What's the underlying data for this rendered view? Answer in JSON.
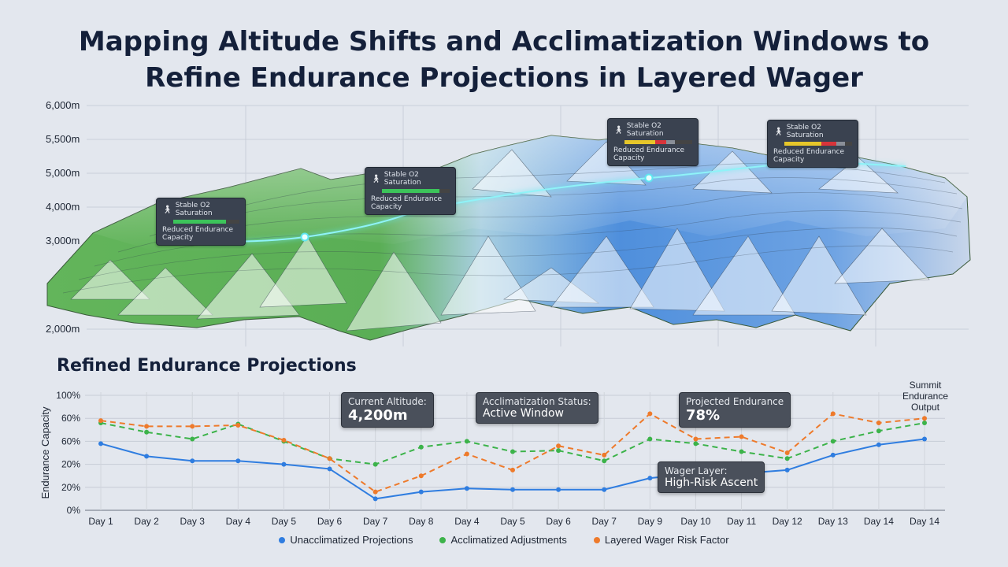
{
  "title": {
    "line1": "Mapping Altitude Shifts and Acclimatization Windows to",
    "line2": "Refine Endurance Projections in Layered Wager"
  },
  "altitude_axis": {
    "labels": [
      "6,000m",
      "5,500m",
      "5,000m",
      "4,000m",
      "3,000m",
      "2,000m"
    ]
  },
  "terrain_callouts": [
    {
      "line1": "Stable O2 Saturation",
      "line2": "Reduced Endurance Capacity",
      "bar": [
        0.8,
        0,
        0
      ]
    },
    {
      "line1": "Stable O2 Saturation",
      "line2": "Reduced Endurance Capacity",
      "bar": [
        0.85,
        0,
        0
      ]
    },
    {
      "line1": "Stable O2 Saturation",
      "line2": "Reduced Endurance Capacity",
      "bar": [
        0.45,
        0.17,
        0.12
      ]
    },
    {
      "line1": "Stable O2 Saturation",
      "line2": "Reduced Endurance Capacity",
      "bar": [
        0.55,
        0.22,
        0.13
      ]
    }
  ],
  "section_title": "Refined Endurance Projections",
  "info_boxes": {
    "current_altitude": {
      "label": "Current Altitude:",
      "value": "4,200m"
    },
    "acclimatization": {
      "label": "Acclimatization Status:",
      "value": "Active Window"
    },
    "projected": {
      "label": "Projected Endurance",
      "value": "78%"
    },
    "wager": {
      "label": "Wager Layer:",
      "value": "High-Risk Ascent"
    }
  },
  "summit_label": "Summit Endurance Output",
  "colors": {
    "unacclimatized": "#2f7de0",
    "acclimatized": "#3cb34a",
    "wager": "#ee7a2b",
    "terrain_green": "#5aae55",
    "terrain_blue": "#4f8fdc",
    "route": "#5fe6ef"
  },
  "chart_data": {
    "type": "line",
    "ylabel": "Endurance Capacity",
    "y_tick_labels": [
      "100%",
      "60%",
      "60%",
      "20%",
      "20%",
      "0%"
    ],
    "categories": [
      "Day 1",
      "Day 2",
      "Day 3",
      "Day 4",
      "Day 5",
      "Day 6",
      "Day 7",
      "Day 8",
      "Day 4",
      "Day 5",
      "Day 6",
      "Day 7",
      "Day 9",
      "Day 10",
      "Day 11",
      "Day 12",
      "Day 13",
      "Day 14",
      "Day 14"
    ],
    "ylim": [
      0,
      100
    ],
    "grid": true,
    "legend_position": "bottom",
    "series": [
      {
        "name": "Unacclimatized Projections",
        "style": "solid",
        "values": [
          58,
          47,
          43,
          43,
          40,
          36,
          10,
          16,
          19,
          18,
          18,
          18,
          28,
          32,
          32,
          35,
          48,
          57,
          62
        ]
      },
      {
        "name": "Acclimatized Adjustments",
        "style": "dashed",
        "values": [
          76,
          68,
          62,
          75,
          60,
          45,
          40,
          55,
          60,
          51,
          52,
          43,
          62,
          58,
          51,
          45,
          60,
          69,
          76
        ]
      },
      {
        "name": "Layered Wager Risk Factor",
        "style": "dashed",
        "values": [
          78,
          73,
          73,
          74,
          61,
          45,
          16,
          30,
          49,
          35,
          56,
          48,
          84,
          62,
          64,
          50,
          84,
          76,
          80
        ]
      }
    ]
  }
}
